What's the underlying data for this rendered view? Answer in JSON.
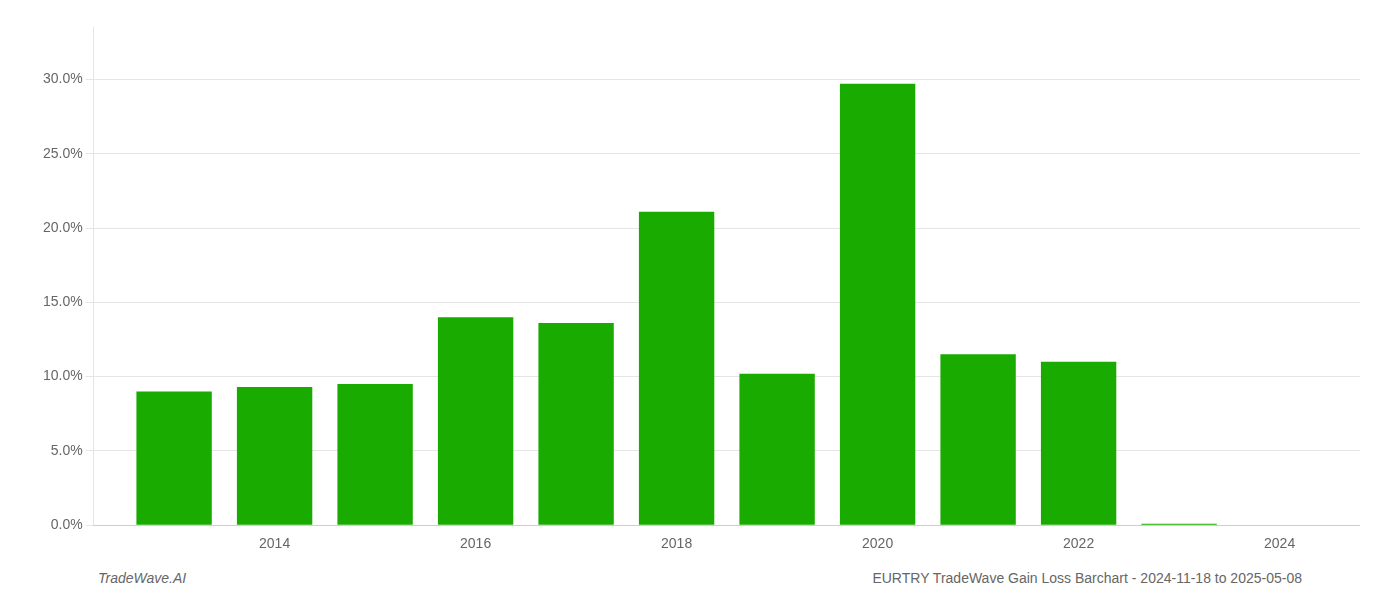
{
  "chart_data": {
    "type": "bar",
    "x": [
      2013,
      2014,
      2015,
      2016,
      2017,
      2018,
      2019,
      2020,
      2021,
      2022,
      2023
    ],
    "values": [
      0.09,
      0.093,
      0.095,
      0.14,
      0.136,
      0.211,
      0.102,
      0.297,
      0.115,
      0.11,
      0.001
    ],
    "color": "#1aab00",
    "xlim": [
      2012.2,
      2024.8
    ],
    "xticks": [
      2014,
      2016,
      2018,
      2020,
      2022,
      2024
    ],
    "ylim": [
      0,
      0.335
    ],
    "yticks": [
      {
        "value": 0.0,
        "label": "0.0%"
      },
      {
        "value": 0.05,
        "label": "5.0%"
      },
      {
        "value": 0.1,
        "label": "10.0%"
      },
      {
        "value": 0.15,
        "label": "15.0%"
      },
      {
        "value": 0.2,
        "label": "20.0%"
      },
      {
        "value": 0.25,
        "label": "25.0%"
      },
      {
        "value": 0.3,
        "label": "30.0%"
      }
    ],
    "grid": true,
    "annotations": [
      "TradeWave.AI",
      "EURTRY TradeWave Gain Loss Barchart - 2024-11-18 to 2025-05-08"
    ]
  }
}
